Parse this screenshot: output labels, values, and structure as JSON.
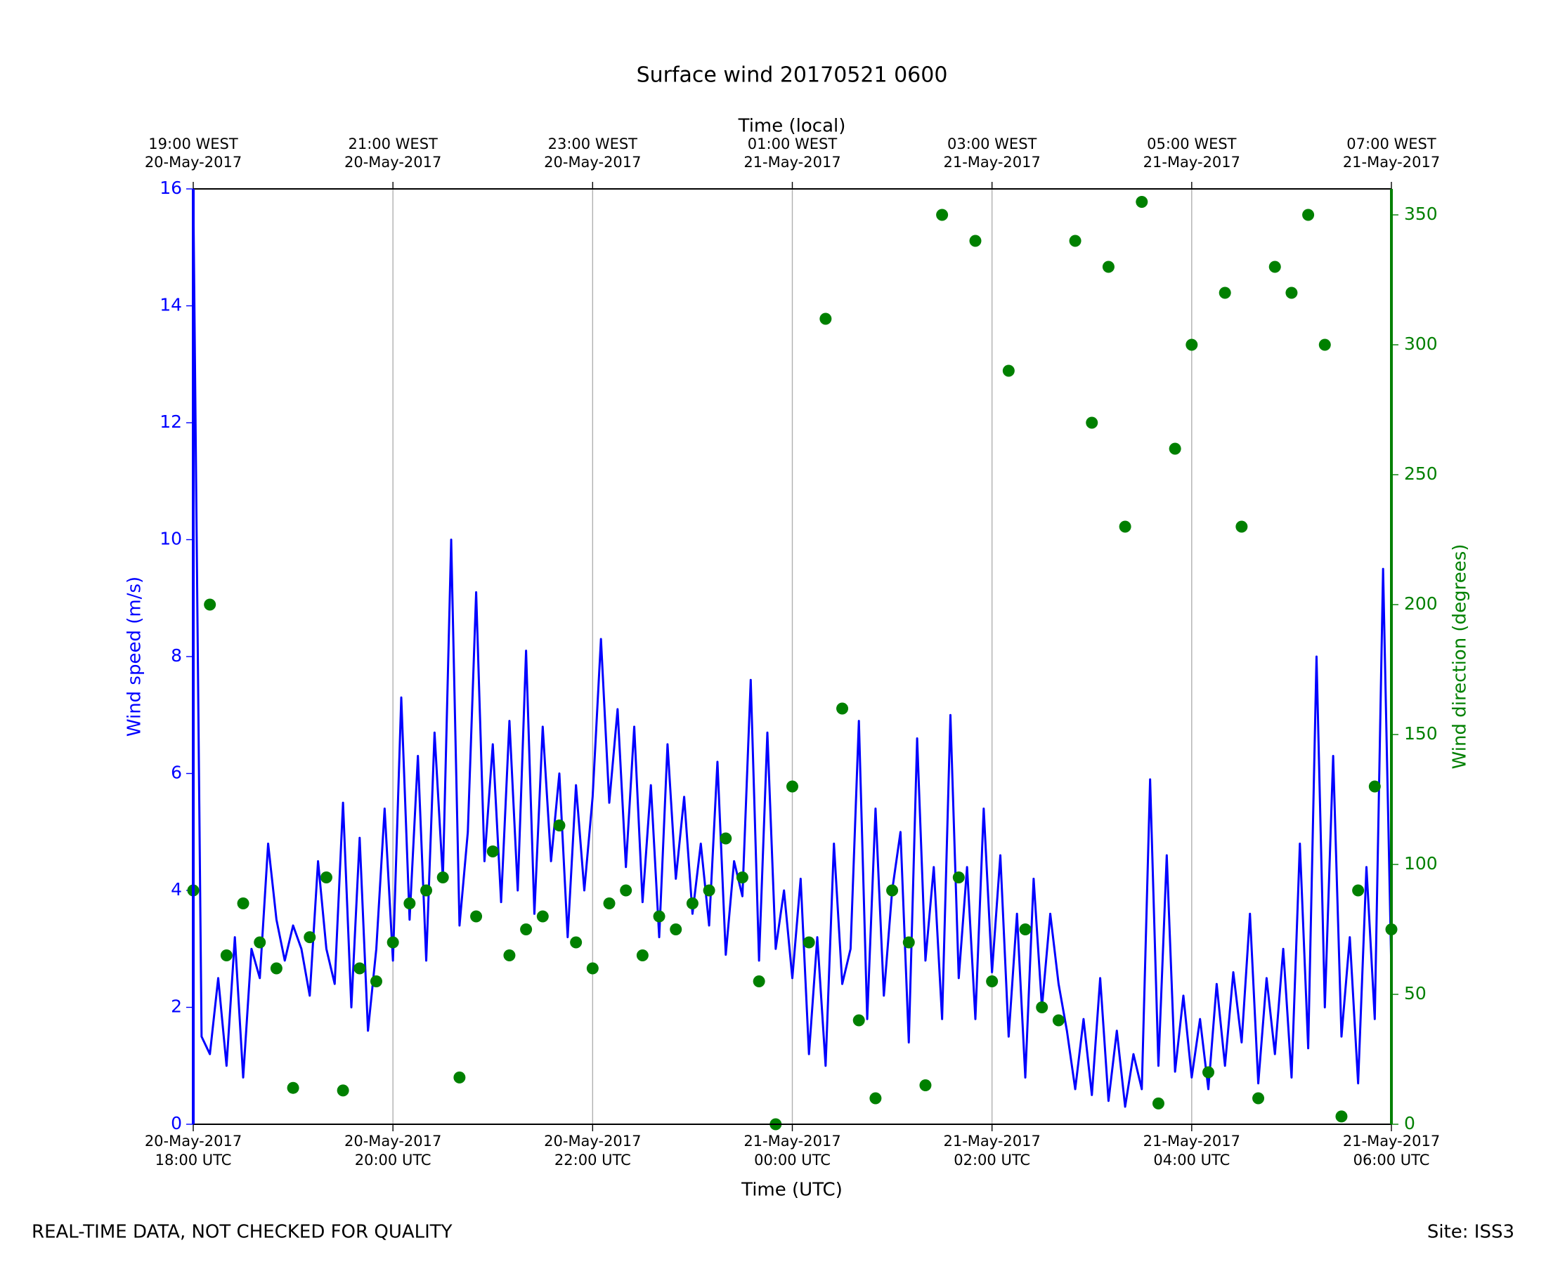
{
  "chart_data": {
    "type": "line-scatter",
    "title": "Surface wind 20170521 0600",
    "xlabel": "Time (UTC)",
    "x2label": "Time (local)",
    "ylabel": "Wind speed (m/s)",
    "y2label": "Wind direction (degrees)",
    "notes": [
      "REAL-TIME DATA, NOT CHECKED FOR QUALITY",
      "Site: ISS3"
    ],
    "xlim": [
      "2017-05-20 18:00",
      "2017-05-21 06:00"
    ],
    "xticks": [
      {
        "value": "2017-05-20 18:00",
        "label": "20-May-2017\n18:00 UTC"
      },
      {
        "value": "2017-05-20 20:00",
        "label": "20-May-2017\n20:00 UTC"
      },
      {
        "value": "2017-05-20 22:00",
        "label": "20-May-2017\n22:00 UTC"
      },
      {
        "value": "2017-05-21 00:00",
        "label": "21-May-2017\n00:00 UTC"
      },
      {
        "value": "2017-05-21 02:00",
        "label": "21-May-2017\n02:00 UTC"
      },
      {
        "value": "2017-05-21 04:00",
        "label": "21-May-2017\n04:00 UTC"
      },
      {
        "value": "2017-05-21 06:00",
        "label": "21-May-2017\n06:00 UTC"
      }
    ],
    "x2ticks": [
      {
        "value": "2017-05-20 18:00",
        "label": "19:00 WEST\n20-May-2017"
      },
      {
        "value": "2017-05-20 20:00",
        "label": "21:00 WEST\n20-May-2017"
      },
      {
        "value": "2017-05-20 22:00",
        "label": "23:00 WEST\n20-May-2017"
      },
      {
        "value": "2017-05-21 00:00",
        "label": "01:00 WEST\n21-May-2017"
      },
      {
        "value": "2017-05-21 02:00",
        "label": "03:00 WEST\n21-May-2017"
      },
      {
        "value": "2017-05-21 04:00",
        "label": "05:00 WEST\n21-May-2017"
      },
      {
        "value": "2017-05-21 06:00",
        "label": "07:00 WEST\n21-May-2017"
      }
    ],
    "xgrid": true,
    "ylim": [
      0,
      16
    ],
    "yticks": [
      0,
      2,
      4,
      6,
      8,
      10,
      12,
      14,
      16
    ],
    "y2lim": [
      0,
      360
    ],
    "y2ticks": [
      0,
      50,
      100,
      150,
      200,
      250,
      300,
      350
    ],
    "series": [
      {
        "name": "Wind speed",
        "kind": "line",
        "axis": "y",
        "color": "#0000ff",
        "x": [
          "2017-05-20 18:00",
          "2017-05-20 18:05",
          "2017-05-20 18:10",
          "2017-05-20 18:15",
          "2017-05-20 18:20",
          "2017-05-20 18:25",
          "2017-05-20 18:30",
          "2017-05-20 18:35",
          "2017-05-20 18:40",
          "2017-05-20 18:45",
          "2017-05-20 18:50",
          "2017-05-20 18:55",
          "2017-05-20 19:00",
          "2017-05-20 19:05",
          "2017-05-20 19:10",
          "2017-05-20 19:15",
          "2017-05-20 19:20",
          "2017-05-20 19:25",
          "2017-05-20 19:30",
          "2017-05-20 19:35",
          "2017-05-20 19:40",
          "2017-05-20 19:45",
          "2017-05-20 19:50",
          "2017-05-20 19:55",
          "2017-05-20 20:00",
          "2017-05-20 20:05",
          "2017-05-20 20:10",
          "2017-05-20 20:15",
          "2017-05-20 20:20",
          "2017-05-20 20:25",
          "2017-05-20 20:30",
          "2017-05-20 20:35",
          "2017-05-20 20:40",
          "2017-05-20 20:45",
          "2017-05-20 20:50",
          "2017-05-20 20:55",
          "2017-05-20 21:00",
          "2017-05-20 21:05",
          "2017-05-20 21:10",
          "2017-05-20 21:15",
          "2017-05-20 21:20",
          "2017-05-20 21:25",
          "2017-05-20 21:30",
          "2017-05-20 21:35",
          "2017-05-20 21:40",
          "2017-05-20 21:45",
          "2017-05-20 21:50",
          "2017-05-20 21:55",
          "2017-05-20 22:00",
          "2017-05-20 22:05",
          "2017-05-20 22:10",
          "2017-05-20 22:15",
          "2017-05-20 22:20",
          "2017-05-20 22:25",
          "2017-05-20 22:30",
          "2017-05-20 22:35",
          "2017-05-20 22:40",
          "2017-05-20 22:45",
          "2017-05-20 22:50",
          "2017-05-20 22:55",
          "2017-05-20 23:00",
          "2017-05-20 23:05",
          "2017-05-20 23:10",
          "2017-05-20 23:15",
          "2017-05-20 23:20",
          "2017-05-20 23:25",
          "2017-05-20 23:30",
          "2017-05-20 23:35",
          "2017-05-20 23:40",
          "2017-05-20 23:45",
          "2017-05-20 23:50",
          "2017-05-20 23:55",
          "2017-05-21 00:00",
          "2017-05-21 00:05",
          "2017-05-21 00:10",
          "2017-05-21 00:15",
          "2017-05-21 00:20",
          "2017-05-21 00:25",
          "2017-05-21 00:30",
          "2017-05-21 00:35",
          "2017-05-21 00:40",
          "2017-05-21 00:45",
          "2017-05-21 00:50",
          "2017-05-21 00:55",
          "2017-05-21 01:00",
          "2017-05-21 01:05",
          "2017-05-21 01:10",
          "2017-05-21 01:15",
          "2017-05-21 01:20",
          "2017-05-21 01:25",
          "2017-05-21 01:30",
          "2017-05-21 01:35",
          "2017-05-21 01:40",
          "2017-05-21 01:45",
          "2017-05-21 01:50",
          "2017-05-21 01:55",
          "2017-05-21 02:00",
          "2017-05-21 02:05",
          "2017-05-21 02:10",
          "2017-05-21 02:15",
          "2017-05-21 02:20",
          "2017-05-21 02:25",
          "2017-05-21 02:30",
          "2017-05-21 02:35",
          "2017-05-21 02:40",
          "2017-05-21 02:45",
          "2017-05-21 02:50",
          "2017-05-21 02:55",
          "2017-05-21 03:00",
          "2017-05-21 03:05",
          "2017-05-21 03:10",
          "2017-05-21 03:15",
          "2017-05-21 03:20",
          "2017-05-21 03:25",
          "2017-05-21 03:30",
          "2017-05-21 03:35",
          "2017-05-21 03:40",
          "2017-05-21 03:45",
          "2017-05-21 03:50",
          "2017-05-21 03:55",
          "2017-05-21 04:00",
          "2017-05-21 04:05",
          "2017-05-21 04:10",
          "2017-05-21 04:15",
          "2017-05-21 04:20",
          "2017-05-21 04:25",
          "2017-05-21 04:30",
          "2017-05-21 04:35",
          "2017-05-21 04:40",
          "2017-05-21 04:45",
          "2017-05-21 04:50",
          "2017-05-21 04:55",
          "2017-05-21 05:00",
          "2017-05-21 05:05",
          "2017-05-21 05:10",
          "2017-05-21 05:15",
          "2017-05-21 05:20",
          "2017-05-21 05:25",
          "2017-05-21 05:30",
          "2017-05-21 05:35",
          "2017-05-21 05:40",
          "2017-05-21 05:45",
          "2017-05-21 05:50",
          "2017-05-21 05:55",
          "2017-05-21 06:00"
        ],
        "values": [
          16,
          1.5,
          1.2,
          2.5,
          1.0,
          3.2,
          0.8,
          3.0,
          2.5,
          4.8,
          3.5,
          2.8,
          3.4,
          3.0,
          2.2,
          4.5,
          3.0,
          2.4,
          5.5,
          2.0,
          4.9,
          1.6,
          3.0,
          5.4,
          2.8,
          7.3,
          3.5,
          6.3,
          2.8,
          6.7,
          4.2,
          10.0,
          3.4,
          5.0,
          9.1,
          4.5,
          6.5,
          3.8,
          6.9,
          4.0,
          8.1,
          3.6,
          6.8,
          4.5,
          6.0,
          3.2,
          5.8,
          4.0,
          5.6,
          8.3,
          5.5,
          7.1,
          4.4,
          6.8,
          3.8,
          5.8,
          3.2,
          6.5,
          4.2,
          5.6,
          3.6,
          4.8,
          3.4,
          6.2,
          2.9,
          4.5,
          3.9,
          7.6,
          2.8,
          6.7,
          3.0,
          4.0,
          2.5,
          4.2,
          1.2,
          3.2,
          1.0,
          4.8,
          2.4,
          3.0,
          6.9,
          1.8,
          5.4,
          2.2,
          4.0,
          5.0,
          1.4,
          6.6,
          2.8,
          4.4,
          1.8,
          7.0,
          2.5,
          4.4,
          1.8,
          5.4,
          2.6,
          4.6,
          1.5,
          3.6,
          0.8,
          4.2,
          2.0,
          3.6,
          2.4,
          1.6,
          0.6,
          1.8,
          0.5,
          2.5,
          0.4,
          1.6,
          0.3,
          1.2,
          0.6,
          5.9,
          1.0,
          4.6,
          0.9,
          2.2,
          0.8,
          1.8,
          0.6,
          2.4,
          1.0,
          2.6,
          1.4,
          3.6,
          0.7,
          2.5,
          1.2,
          3.0,
          0.8,
          4.8,
          1.3,
          8.0,
          2.0,
          6.3,
          1.5,
          3.2,
          0.7,
          4.4,
          1.8,
          9.5,
          2.6
        ]
      },
      {
        "name": "Wind direction",
        "kind": "scatter",
        "axis": "y2",
        "color": "#008000",
        "x": [
          "2017-05-20 18:00",
          "2017-05-20 18:10",
          "2017-05-20 18:20",
          "2017-05-20 18:30",
          "2017-05-20 18:40",
          "2017-05-20 18:50",
          "2017-05-20 19:00",
          "2017-05-20 19:10",
          "2017-05-20 19:20",
          "2017-05-20 19:30",
          "2017-05-20 19:40",
          "2017-05-20 19:50",
          "2017-05-20 20:00",
          "2017-05-20 20:10",
          "2017-05-20 20:20",
          "2017-05-20 20:30",
          "2017-05-20 20:40",
          "2017-05-20 20:50",
          "2017-05-20 21:00",
          "2017-05-20 21:10",
          "2017-05-20 21:20",
          "2017-05-20 21:30",
          "2017-05-20 21:40",
          "2017-05-20 21:50",
          "2017-05-20 22:00",
          "2017-05-20 22:10",
          "2017-05-20 22:20",
          "2017-05-20 22:30",
          "2017-05-20 22:40",
          "2017-05-20 22:50",
          "2017-05-20 23:00",
          "2017-05-20 23:10",
          "2017-05-20 23:20",
          "2017-05-20 23:30",
          "2017-05-20 23:40",
          "2017-05-20 23:50",
          "2017-05-21 00:00",
          "2017-05-21 00:10",
          "2017-05-21 00:20",
          "2017-05-21 00:30",
          "2017-05-21 00:40",
          "2017-05-21 00:50",
          "2017-05-21 01:00",
          "2017-05-21 01:10",
          "2017-05-21 01:20",
          "2017-05-21 01:30",
          "2017-05-21 01:40",
          "2017-05-21 01:50",
          "2017-05-21 02:00",
          "2017-05-21 02:10",
          "2017-05-21 02:20",
          "2017-05-21 02:30",
          "2017-05-21 02:40",
          "2017-05-21 02:50",
          "2017-05-21 03:00",
          "2017-05-21 03:10",
          "2017-05-21 03:20",
          "2017-05-21 03:30",
          "2017-05-21 03:40",
          "2017-05-21 03:50",
          "2017-05-21 04:00",
          "2017-05-21 04:10",
          "2017-05-21 04:20",
          "2017-05-21 04:30",
          "2017-05-21 04:40",
          "2017-05-21 04:50",
          "2017-05-21 05:00",
          "2017-05-21 05:10",
          "2017-05-21 05:20",
          "2017-05-21 05:30",
          "2017-05-21 05:40",
          "2017-05-21 05:50",
          "2017-05-21 06:00"
        ],
        "values": [
          90,
          200,
          65,
          85,
          70,
          60,
          14,
          72,
          95,
          13,
          60,
          55,
          70,
          85,
          90,
          95,
          18,
          80,
          105,
          65,
          75,
          80,
          115,
          70,
          60,
          85,
          90,
          65,
          80,
          75,
          85,
          90,
          110,
          95,
          55,
          0,
          130,
          70,
          310,
          160,
          40,
          10,
          90,
          70,
          15,
          350,
          95,
          340,
          55,
          290,
          75,
          45,
          40,
          340,
          270,
          330,
          230,
          355,
          8,
          260,
          300,
          20,
          320,
          230,
          10,
          330,
          320,
          350,
          300,
          3,
          90,
          130,
          75
        ]
      }
    ]
  }
}
